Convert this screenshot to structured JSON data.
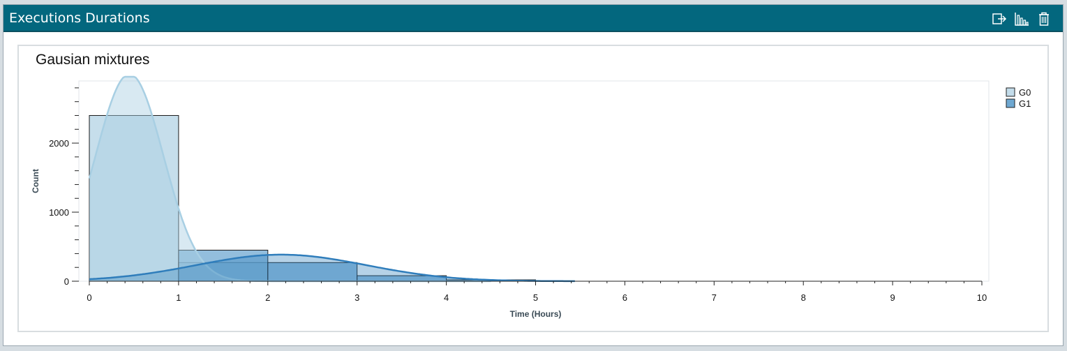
{
  "panel": {
    "title": "Executions Durations",
    "icons": [
      "export-icon",
      "bar-chart-icon",
      "trash-icon"
    ]
  },
  "colors": {
    "header_bg": "#03677e",
    "g0": "#c3dcea",
    "g1": "#6fa8d1",
    "g0_curve": "#a8cfe3",
    "g1_curve": "#2f7dbb"
  },
  "chart_data": {
    "type": "histogram",
    "title": "Gausian mixtures",
    "xlabel": "Time (Hours)",
    "ylabel": "Count",
    "xlim": [
      0,
      10
    ],
    "ylim": [
      0,
      2900
    ],
    "x_ticks": [
      0,
      1,
      2,
      3,
      4,
      5,
      6,
      7,
      8,
      9,
      10
    ],
    "y_ticks": [
      0,
      1000,
      2000
    ],
    "legend": {
      "position": "top-right",
      "entries": [
        "G0",
        "G1"
      ]
    },
    "bins": [
      [
        0,
        1
      ],
      [
        1,
        2
      ],
      [
        2,
        3
      ],
      [
        3,
        4
      ],
      [
        4,
        5
      ],
      [
        5,
        6
      ],
      [
        6,
        7
      ],
      [
        7,
        8
      ],
      [
        8,
        9
      ],
      [
        9,
        10
      ]
    ],
    "series": [
      {
        "name": "G0",
        "values": [
          2400,
          270,
          0,
          0,
          0,
          0,
          0,
          0,
          0,
          0
        ],
        "curve": {
          "kind": "gaussian",
          "mean": 0.45,
          "sd": 0.38,
          "peak": 3000
        }
      },
      {
        "name": "G1",
        "values": [
          0,
          450,
          270,
          80,
          20,
          0,
          0,
          0,
          0,
          0
        ],
        "curve": {
          "kind": "gaussian",
          "mean": 2.15,
          "sd": 0.95,
          "peak": 385
        }
      }
    ]
  }
}
